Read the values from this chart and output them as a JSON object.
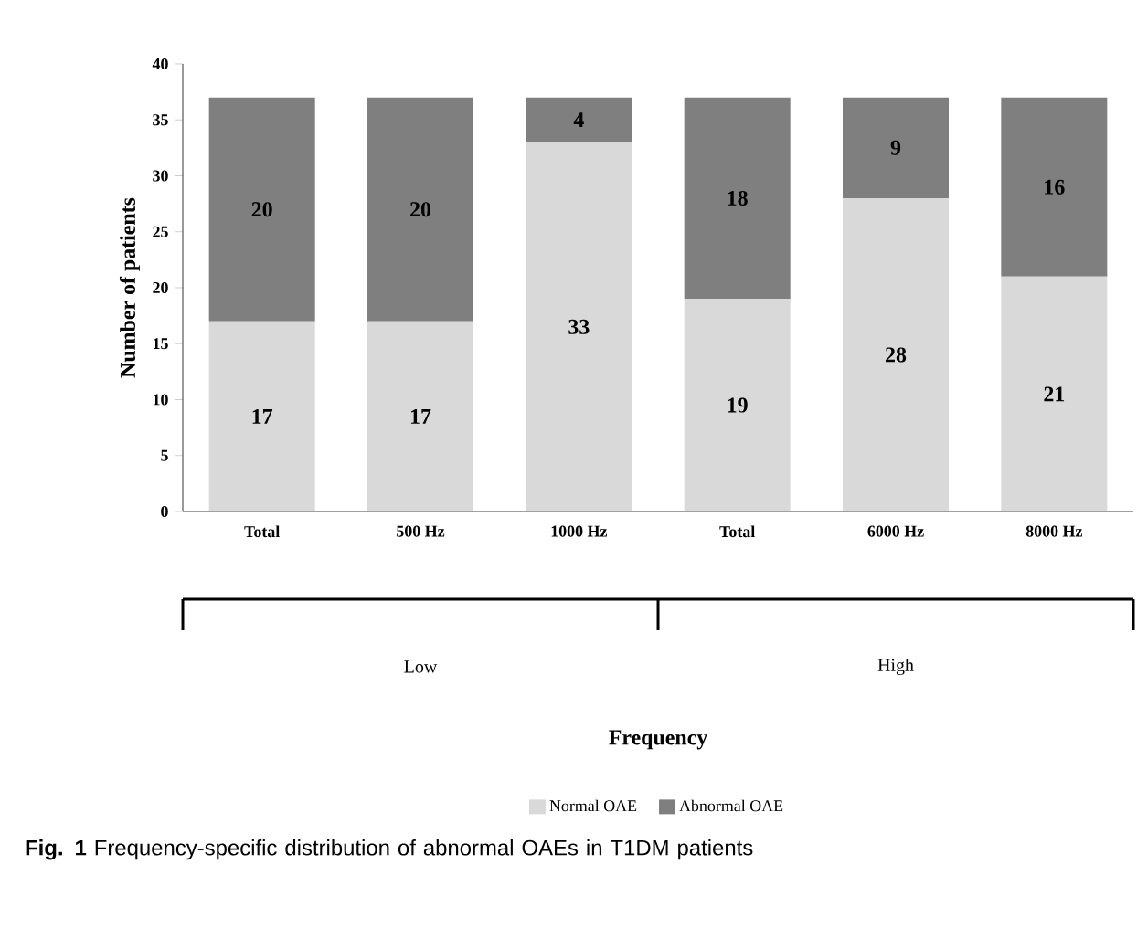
{
  "chart_data": {
    "type": "bar",
    "stacked": true,
    "categories": [
      "Total",
      "500 Hz",
      "1000 Hz",
      "Total",
      "6000 Hz",
      "8000 Hz"
    ],
    "series": [
      {
        "name": "Normal OAE",
        "color": "#d9d9d9",
        "values": [
          17,
          17,
          33,
          19,
          28,
          21
        ]
      },
      {
        "name": "Abnormal OAE",
        "color": "#7f7f7f",
        "values": [
          20,
          20,
          4,
          18,
          9,
          16
        ]
      }
    ],
    "ylabel": "Number of patients",
    "ylim": [
      0,
      40
    ],
    "yticks": [
      0,
      5,
      10,
      15,
      20,
      25,
      30,
      35,
      40
    ],
    "data_labels": true,
    "legend": "bottom",
    "annotations": [
      "Low",
      "High",
      "Frequency",
      "**Fig. 1**  Frequency-specific distribution of abnormal OAEs in T1DM patients"
    ]
  }
}
